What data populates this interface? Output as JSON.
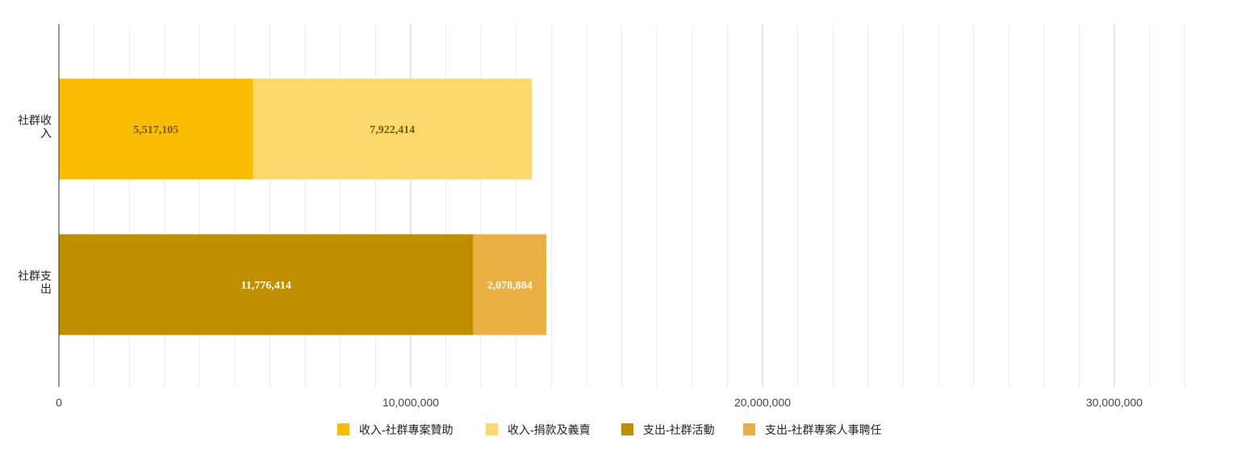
{
  "chart_data": {
    "type": "bar",
    "orientation": "horizontal",
    "stacked": true,
    "categories": [
      "社群收入",
      "社群支出"
    ],
    "category_lines": [
      [
        "社群收",
        "入"
      ],
      [
        "社群支",
        "出"
      ]
    ],
    "series": [
      {
        "name": "收入-社群專案贊助",
        "values": [
          5517105,
          0
        ],
        "labels": [
          "5,517,105",
          ""
        ],
        "color": "#f9bc00",
        "label_color": "#7a5a00"
      },
      {
        "name": "收入-捐款及義賣",
        "values": [
          7922414,
          0
        ],
        "labels": [
          "7,922,414",
          ""
        ],
        "color": "#fdd96d",
        "label_color": "#7a5a00"
      },
      {
        "name": "支出-社群活動",
        "values": [
          0,
          11776414
        ],
        "labels": [
          "",
          "11,776,414"
        ],
        "color": "#bf8f00",
        "label_color": "#ffffff"
      },
      {
        "name": "支出-社群專案人事聘任",
        "values": [
          0,
          2078884
        ],
        "labels": [
          "",
          "2,078,884"
        ],
        "color": "#ebb044",
        "label_color": "#ffffff"
      }
    ],
    "xlim": [
      0,
      32500000
    ],
    "xticks": [
      0,
      10000000,
      20000000,
      30000000
    ],
    "xtick_labels": [
      "0",
      "10,000,000",
      "20,000,000",
      "30,000,000"
    ],
    "minor_grid_step": 1000000,
    "grid": true,
    "legend_position": "bottom"
  }
}
